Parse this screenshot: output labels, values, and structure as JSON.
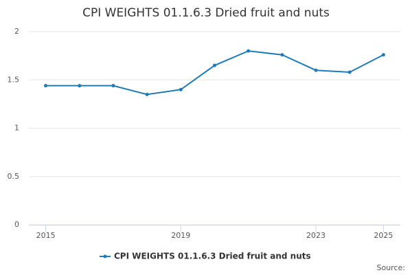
{
  "chart_data": {
    "type": "line",
    "title": "CPI WEIGHTS 01.1.6.3 Dried fruit and nuts",
    "x": [
      2015,
      2016,
      2017,
      2018,
      2019,
      2020,
      2021,
      2022,
      2023,
      2024,
      2025
    ],
    "series": [
      {
        "name": "CPI WEIGHTS 01.1.6.3 Dried fruit and nuts",
        "color": "#1f7ab8",
        "values": [
          1.44,
          1.44,
          1.44,
          1.35,
          1.4,
          1.65,
          1.8,
          1.76,
          1.6,
          1.58,
          1.76
        ]
      }
    ],
    "xlim": [
      2014.5,
      2025.5
    ],
    "xticks": [
      2015,
      2019,
      2023,
      2025
    ],
    "ylim": [
      0,
      2
    ],
    "yticks": [
      0,
      0.5,
      1,
      1.5,
      2
    ],
    "grid": true,
    "legend": "bottom",
    "source": "Source:"
  }
}
